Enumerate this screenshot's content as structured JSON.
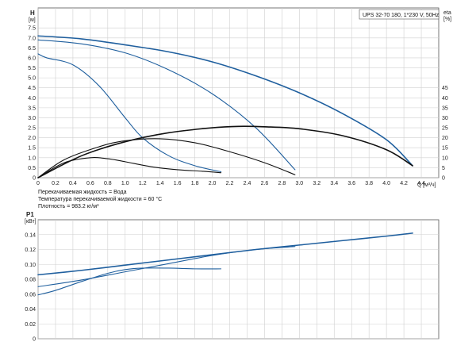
{
  "chart_data": [
    {
      "type": "line",
      "title": "UPS 32-70 180, 1*230 V, 50Hz",
      "xlabel": "Q [м³/ч]",
      "ylabel": "H [м]",
      "y2label": "eta [%]",
      "x_axis_name": "Q",
      "x_axis_unit": "[м³/ч]",
      "y_axis_name": "H",
      "y_axis_unit": "[м]",
      "y2_axis_name": "eta",
      "y2_axis_unit": "[%]",
      "xlim": [
        0,
        4.6
      ],
      "ylim": [
        0,
        8.5
      ],
      "y2lim": [
        0,
        45
      ],
      "grid": true,
      "xticks": [
        "0",
        "0.2",
        "0.4",
        "0.6",
        "0.8",
        "1.0",
        "1.2",
        "1.4",
        "1.6",
        "1.8",
        "2.0",
        "2.2",
        "2.4",
        "2.6",
        "2.8",
        "3.0",
        "3.2",
        "3.4",
        "3.6",
        "3.8",
        "4.0",
        "4.2",
        "4.4"
      ],
      "yticks": [
        "0",
        "0.5",
        "1.0",
        "1.5",
        "2.0",
        "2.5",
        "3.0",
        "3.5",
        "4.0",
        "4.5",
        "5.0",
        "5.5",
        "6.0",
        "6.5",
        "7.0",
        "7.5"
      ],
      "y2ticks": [
        "0",
        "5",
        "10",
        "15",
        "20",
        "25",
        "30",
        "35",
        "40",
        "45"
      ],
      "notes": [
        "Перекачиваемая жидкость = Вода",
        "Температура перекачиваемой жидкости = 60 °C",
        "Плотность = 983.2 кг/м³"
      ],
      "series": [
        {
          "axis": "H",
          "color": "#1f5f9e",
          "x": [
            0,
            0.5,
            1.0,
            1.5,
            2.0,
            2.5,
            3.0,
            3.5,
            4.0,
            4.3
          ],
          "values": [
            7.1,
            6.95,
            6.65,
            6.3,
            5.8,
            5.1,
            4.25,
            3.2,
            1.9,
            0.6
          ]
        },
        {
          "axis": "H",
          "color": "#1f5f9e",
          "x": [
            0,
            0.5,
            1.0,
            1.5,
            2.0,
            2.5,
            2.95
          ],
          "values": [
            6.9,
            6.7,
            6.25,
            5.4,
            4.2,
            2.5,
            0.4
          ]
        },
        {
          "axis": "H",
          "color": "#1f5f9e",
          "x": [
            0,
            0.1,
            0.4,
            0.7,
            1.0,
            1.2,
            1.5,
            1.8,
            2.1
          ],
          "values": [
            6.2,
            6.0,
            5.65,
            4.6,
            3.0,
            2.0,
            1.1,
            0.6,
            0.3
          ]
        },
        {
          "axis": "eta",
          "color": "#111111",
          "x": [
            0,
            0.5,
            1.0,
            1.5,
            2.0,
            2.3,
            2.6,
            3.0,
            3.5,
            4.0,
            4.3
          ],
          "values": [
            0,
            11,
            18,
            22.5,
            25,
            25.7,
            25.5,
            24.5,
            21,
            14,
            6
          ]
        },
        {
          "axis": "eta",
          "color": "#111111",
          "x": [
            0,
            0.3,
            0.7,
            1.0,
            1.4,
            1.8,
            2.2,
            2.6,
            2.95
          ],
          "values": [
            0,
            9,
            15.5,
            18.5,
            19.5,
            17.5,
            13,
            7.5,
            1.5
          ]
        },
        {
          "axis": "eta",
          "color": "#111111",
          "x": [
            0,
            0.3,
            0.6,
            0.8,
            1.0,
            1.3,
            1.6,
            1.9,
            2.1
          ],
          "values": [
            0,
            7.5,
            10,
            9.5,
            8,
            5.5,
            4,
            3.2,
            2.5
          ]
        }
      ]
    },
    {
      "type": "line",
      "xlabel": "",
      "ylabel": "P1 [кВт]",
      "y_axis_name": "P1",
      "y_axis_unit": "[кВт]",
      "xlim": [
        0,
        4.6
      ],
      "ylim": [
        0,
        0.16
      ],
      "grid": true,
      "yticks": [
        "0",
        "0.02",
        "0.04",
        "0.06",
        "0.08",
        "0.10",
        "0.12",
        "0.14"
      ],
      "series": [
        {
          "color": "#1f5f9e",
          "x": [
            0,
            0.5,
            1.0,
            1.5,
            2.0,
            2.5,
            3.0,
            3.5,
            4.0,
            4.3
          ],
          "values": [
            0.086,
            0.092,
            0.099,
            0.106,
            0.113,
            0.12,
            0.126,
            0.132,
            0.138,
            0.142
          ]
        },
        {
          "color": "#1f5f9e",
          "x": [
            0,
            0.5,
            1.0,
            1.5,
            2.0,
            2.5,
            2.95
          ],
          "values": [
            0.07,
            0.079,
            0.09,
            0.101,
            0.112,
            0.12,
            0.124
          ]
        },
        {
          "color": "#1f5f9e",
          "x": [
            0,
            0.2,
            0.5,
            0.8,
            1.0,
            1.2,
            1.5,
            1.8,
            2.1
          ],
          "values": [
            0.059,
            0.065,
            0.077,
            0.088,
            0.093,
            0.095,
            0.095,
            0.094,
            0.094
          ]
        }
      ]
    }
  ]
}
